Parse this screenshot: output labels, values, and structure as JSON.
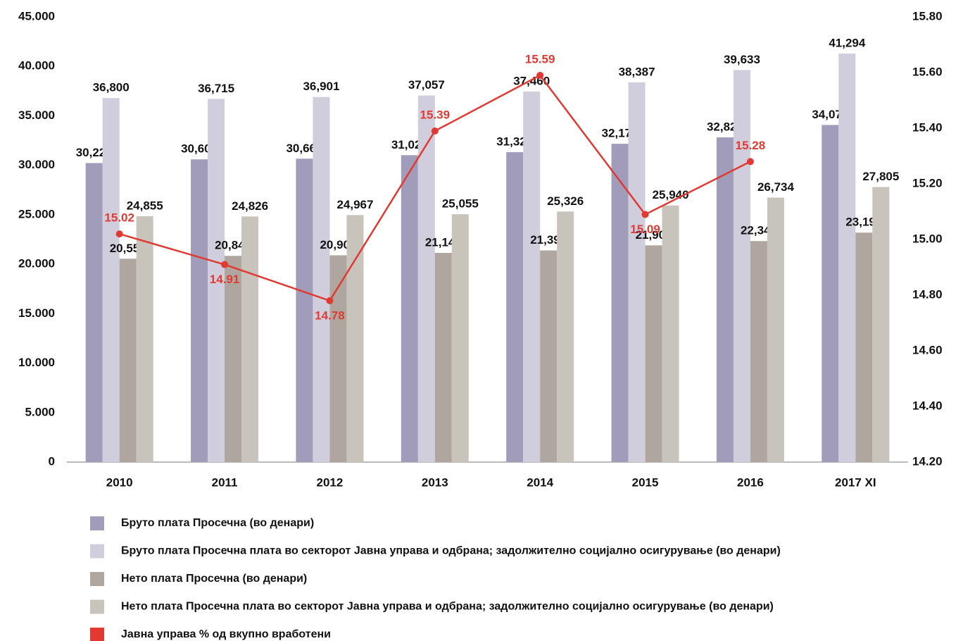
{
  "chart_data": {
    "type": "bar",
    "categories": [
      "2010",
      "2011",
      "2012",
      "2013",
      "2014",
      "2015",
      "2016",
      "2017 XI"
    ],
    "ylim": [
      0,
      45000
    ],
    "yticks": [
      0,
      {
        "value": 5000,
        "label": "5.000"
      },
      {
        "value": 10000,
        "label": "10.000"
      },
      {
        "value": 15000,
        "label": "15.000"
      },
      {
        "value": 20000,
        "label": "20.000"
      },
      {
        "value": 25000,
        "label": "25.000"
      },
      {
        "value": 30000,
        "label": "30.000"
      },
      {
        "value": 35000,
        "label": "35.000"
      },
      {
        "value": 40000,
        "label": "40.000"
      },
      {
        "value": 45000,
        "label": "45.000"
      }
    ],
    "y2lim": [
      14.2,
      15.8
    ],
    "y2ticks": [
      {
        "value": 14.2,
        "label": "14.20"
      },
      {
        "value": 14.4,
        "label": "14.40"
      },
      {
        "value": 14.6,
        "label": "14.60"
      },
      {
        "value": 14.8,
        "label": "14.80"
      },
      {
        "value": 15.0,
        "label": "15.00"
      },
      {
        "value": 15.2,
        "label": "15.20"
      },
      {
        "value": 15.4,
        "label": "15.40"
      },
      {
        "value": 15.6,
        "label": "15.60"
      },
      {
        "value": 15.8,
        "label": "15.80"
      }
    ],
    "legend": "bottom",
    "series": [
      {
        "name": "Бруто плата Просечна (во денари)",
        "type": "bar",
        "color": "#a09cb9",
        "values": [
          30225,
          30602,
          30669,
          31025,
          31325,
          32173,
          32822,
          34079
        ],
        "value_labels": [
          "30,225",
          "30,602",
          "30,669",
          "31,025",
          "31,325",
          "32,173",
          "32,822",
          "34,079"
        ]
      },
      {
        "name": "Бруто плата Просечна плата во секторот Јавна управа и одбрана; задолжително социјално осигурување (во денари)",
        "type": "bar",
        "color": "#d0cedd",
        "values": [
          36800,
          36715,
          36901,
          37057,
          37460,
          38387,
          39633,
          41294
        ],
        "value_labels": [
          "36,800",
          "36,715",
          "36,901",
          "37,057",
          "37,460",
          "38,387",
          "39,633",
          "41,294"
        ]
      },
      {
        "name": "Нето плата Просечна (во денари)",
        "type": "bar",
        "color": "#aea69f",
        "values": [
          20553,
          20847,
          20902,
          21145,
          21394,
          21906,
          22342,
          23196
        ],
        "value_labels": [
          "20,553",
          "20,847",
          "20,902",
          "21,145",
          "21,394",
          "21,906",
          "22,342",
          "23,196"
        ]
      },
      {
        "name": "Нето плата Просечна плата во секторот Јавна управа и одбрана; задолжително социјално осигурување (во денари)",
        "type": "bar",
        "color": "#c8c3bb",
        "values": [
          24855,
          24826,
          24967,
          25055,
          25326,
          25940,
          26734,
          27805
        ],
        "value_labels": [
          "24,855",
          "24,826",
          "24,967",
          "25,055",
          "25,326",
          "25,940",
          "26,734",
          "27,805"
        ]
      },
      {
        "name": "Јавна управа % од вкупно вработени",
        "type": "line",
        "axis": "y2",
        "color": "#e03a32",
        "values": [
          15.02,
          14.91,
          14.78,
          15.39,
          15.59,
          15.09,
          15.28,
          null
        ]
      }
    ]
  }
}
